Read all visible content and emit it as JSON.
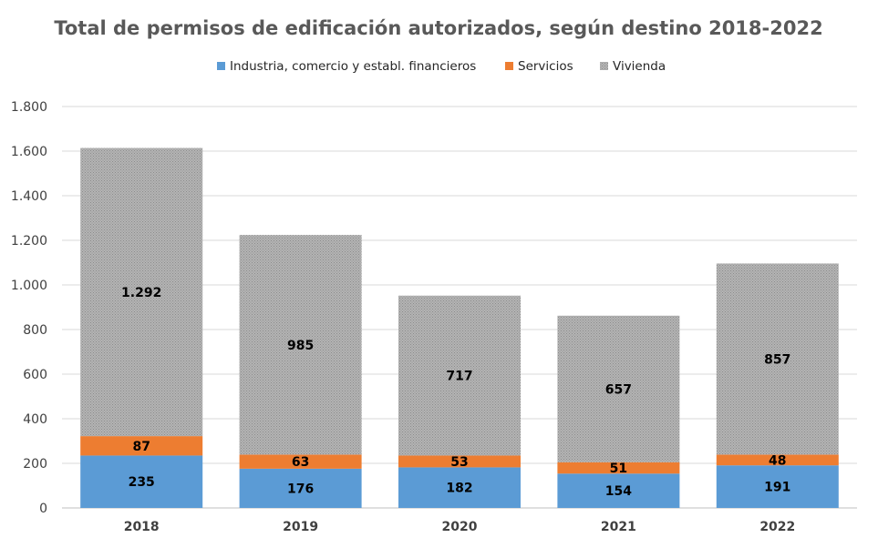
{
  "chart_data": {
    "type": "bar",
    "stacked": true,
    "title": "Total de permisos de edificación autorizados, según destino 2018-2022",
    "xlabel": "",
    "ylabel": "",
    "ylim": [
      0,
      1800
    ],
    "yticks": [
      0,
      200,
      400,
      600,
      800,
      1000,
      1200,
      1400,
      1600,
      1800
    ],
    "ytick_labels": [
      "0",
      "200",
      "400",
      "600",
      "800",
      "1.000",
      "1.200",
      "1.400",
      "1.600",
      "1.800"
    ],
    "grid": true,
    "legend_position": "top",
    "categories": [
      "2018",
      "2019",
      "2020",
      "2021",
      "2022"
    ],
    "series": [
      {
        "name": "Industria, comercio y establ. financieros",
        "color": "#5B9BD5",
        "values": [
          235,
          176,
          182,
          154,
          191
        ],
        "labels": [
          "235",
          "176",
          "182",
          "154",
          "191"
        ]
      },
      {
        "name": "Servicios",
        "color": "#ED7D31",
        "values": [
          87,
          63,
          53,
          51,
          48
        ],
        "labels": [
          "87",
          "63",
          "53",
          "51",
          "48"
        ]
      },
      {
        "name": "Vivienda",
        "color": "#A5A5A5",
        "pattern": "dotted",
        "values": [
          1292,
          985,
          717,
          657,
          857
        ],
        "labels": [
          "1.292",
          "985",
          "717",
          "657",
          "857"
        ]
      }
    ]
  }
}
